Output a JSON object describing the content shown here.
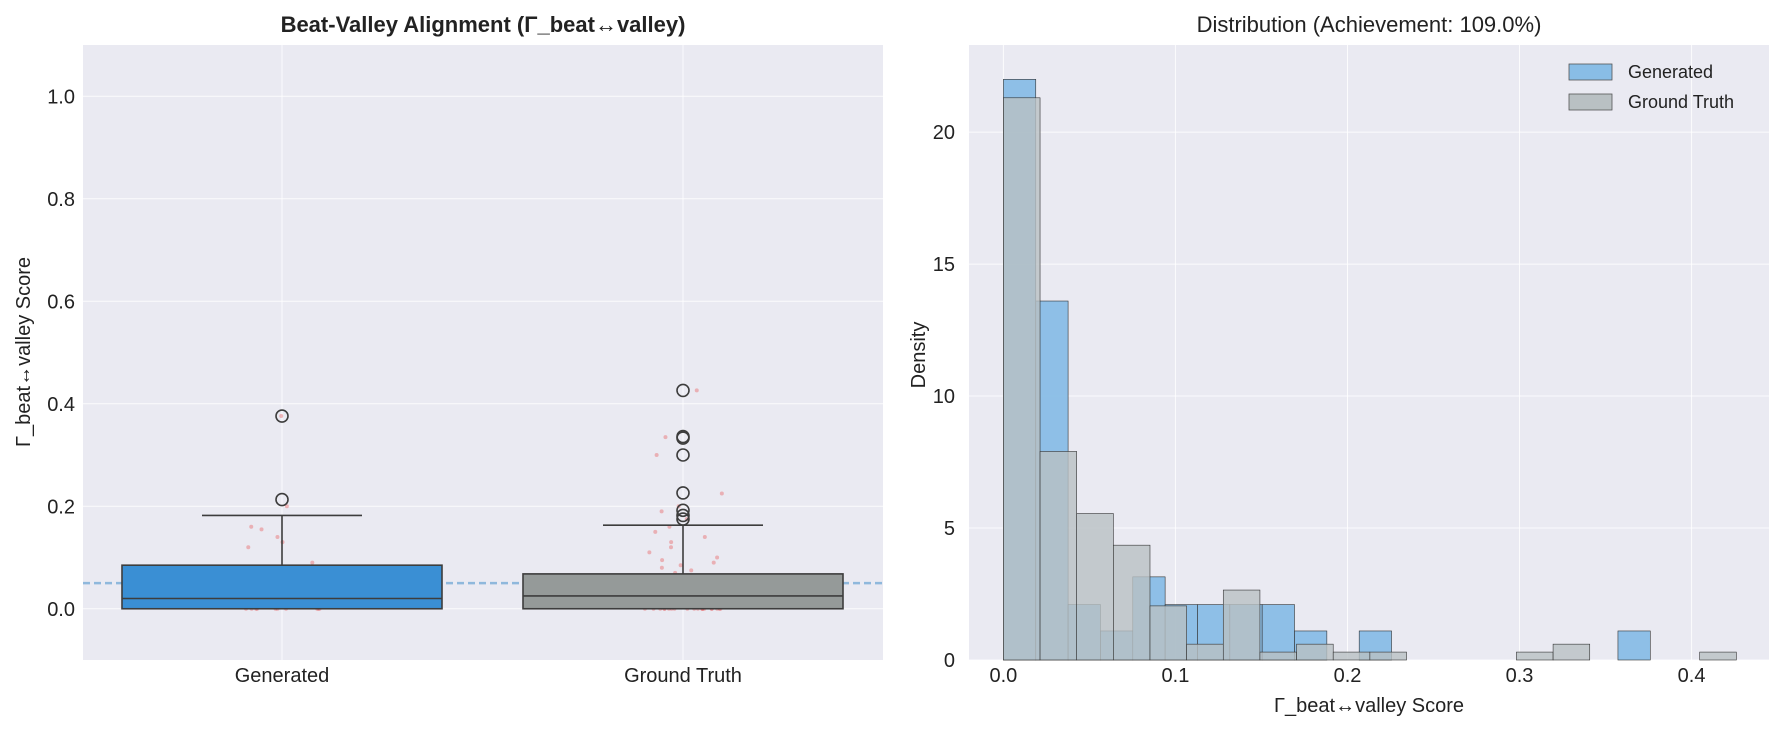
{
  "chart_data": [
    {
      "type": "box",
      "title": "Beat-Valley Alignment (Γ_beat↔valley)",
      "xlabel": "",
      "ylabel": "Γ_beat↔valley Score",
      "ylim": [
        -0.1,
        1.1
      ],
      "yticks": [
        0.0,
        0.2,
        0.4,
        0.6,
        0.8,
        1.0
      ],
      "ytick_labels": [
        "0.0",
        "0.2",
        "0.4",
        "0.6",
        "0.8",
        "1.0"
      ],
      "categories": [
        "Generated",
        "Ground Truth"
      ],
      "grid": true,
      "reference_line": {
        "y": 0.05,
        "style": "dashed",
        "color": "#8fb8dc"
      },
      "boxes": [
        {
          "name": "Generated",
          "min": 0.0,
          "q1": 0.0,
          "median": 0.02,
          "q3": 0.085,
          "whisker_high": 0.182,
          "outliers": [
            0.213,
            0.376
          ],
          "color": "#3a8fd4"
        },
        {
          "name": "Ground Truth",
          "min": 0.0,
          "q1": 0.0,
          "median": 0.025,
          "q3": 0.068,
          "whisker_high": 0.163,
          "outliers": [
            0.175,
            0.182,
            0.192,
            0.226,
            0.3,
            0.333,
            0.336,
            0.426
          ],
          "color": "#959a99"
        }
      ],
      "jitter_points": [
        {
          "category": "Generated",
          "values": [
            0.376,
            0.2,
            0.16,
            0.155,
            0.14,
            0.13,
            0.12,
            0.09,
            0.08,
            0.07,
            0.05,
            0.045,
            0.04,
            0.035,
            0.03,
            0.025,
            0.02,
            0.015,
            0.01,
            0.005,
            0.0,
            0.0,
            0.0,
            0.0,
            0.0,
            0.0,
            0.0,
            0.0,
            0.0,
            0.0
          ]
        },
        {
          "category": "Ground Truth",
          "values": [
            0.426,
            0.335,
            0.3,
            0.225,
            0.2,
            0.19,
            0.175,
            0.16,
            0.15,
            0.14,
            0.13,
            0.12,
            0.11,
            0.1,
            0.095,
            0.09,
            0.085,
            0.08,
            0.075,
            0.07,
            0.065,
            0.06,
            0.055,
            0.05,
            0.045,
            0.04,
            0.035,
            0.03,
            0.028,
            0.025,
            0.022,
            0.02,
            0.018,
            0.015,
            0.012,
            0.01,
            0.008,
            0.006,
            0.004,
            0.002,
            0.0,
            0.0,
            0.0,
            0.0,
            0.0,
            0.0,
            0.0,
            0.0,
            0.0,
            0.0,
            0.0,
            0.0,
            0.0,
            0.0,
            0.0,
            0.0,
            0.0,
            0.0,
            0.0,
            0.0
          ]
        }
      ],
      "jitter_color": "#e84545"
    },
    {
      "type": "histogram",
      "title": "Distribution (Achievement: 109.0%)",
      "xlabel": "Γ_beat↔valley Score",
      "ylabel": "Density",
      "xlim": [
        -0.02,
        0.445
      ],
      "ylim": [
        0,
        23.3
      ],
      "xticks": [
        0.0,
        0.1,
        0.2,
        0.3,
        0.4
      ],
      "xtick_labels": [
        "0.0",
        "0.1",
        "0.2",
        "0.3",
        "0.4"
      ],
      "yticks": [
        0,
        5,
        10,
        15,
        20
      ],
      "ytick_labels": [
        "0",
        "5",
        "10",
        "15",
        "20"
      ],
      "grid": true,
      "legend_position": "top-right",
      "series": [
        {
          "name": "Generated",
          "color": "#89bde6",
          "bin_width": 0.0188,
          "bins_start": [
            0.0,
            0.0188,
            0.0376,
            0.0564,
            0.0752,
            0.094,
            0.1128,
            0.1316,
            0.1504,
            0.1692,
            0.188,
            0.2068,
            0.2256,
            0.2444,
            0.2632,
            0.282,
            0.3008,
            0.3196,
            0.3384,
            0.3572
          ],
          "density": [
            22.0,
            13.6,
            2.1,
            1.1,
            3.15,
            2.1,
            2.1,
            2.1,
            2.1,
            1.1,
            0,
            1.1,
            0,
            0,
            0,
            0,
            0,
            0,
            0,
            1.1
          ]
        },
        {
          "name": "Ground Truth",
          "color": "#b9c0c3",
          "bin_width": 0.0213,
          "bins_start": [
            0.0,
            0.0213,
            0.0426,
            0.0639,
            0.0852,
            0.1065,
            0.1278,
            0.1491,
            0.1704,
            0.1917,
            0.213,
            0.2343,
            0.2556,
            0.2769,
            0.2982,
            0.3195,
            0.3408,
            0.3621,
            0.3834,
            0.4047
          ],
          "density": [
            21.3,
            7.9,
            5.55,
            4.35,
            2.05,
            0.6,
            2.65,
            0.3,
            0.6,
            0.3,
            0.3,
            0,
            0,
            0,
            0.3,
            0.6,
            0,
            0,
            0,
            0.3
          ]
        }
      ]
    }
  ]
}
